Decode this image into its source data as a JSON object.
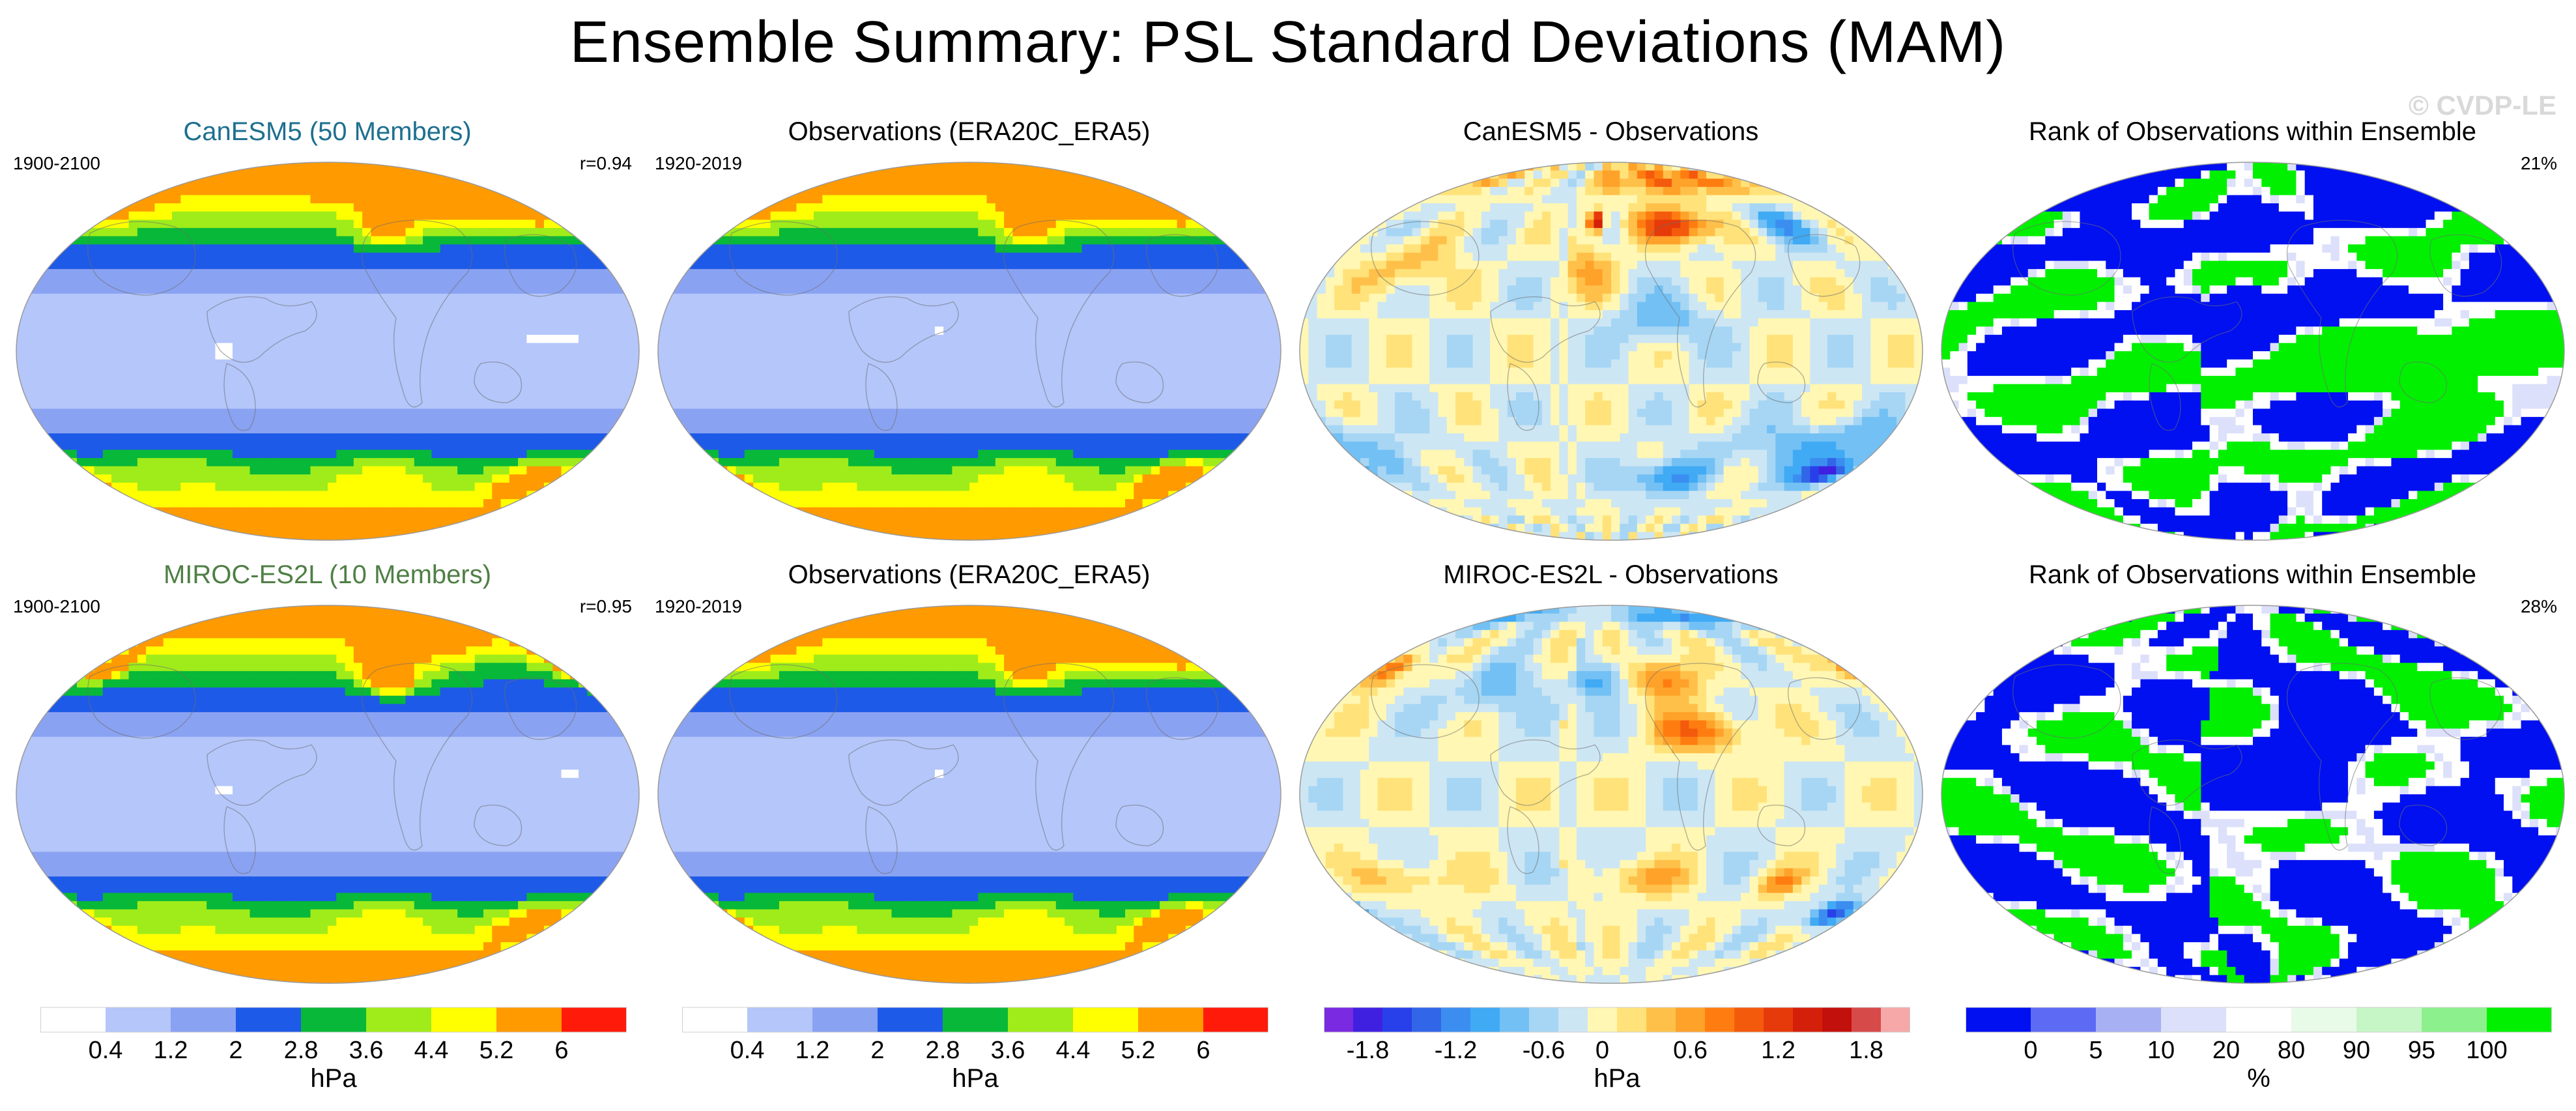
{
  "title": "Ensemble Summary: PSL Standard Deviations (MAM)",
  "watermark": "© CVDP-LE",
  "colors": {
    "sd": [
      "#ffffff",
      "#b4c6fa",
      "#7f96f0",
      "#1f5de8",
      "#0d46e0",
      "#08b838",
      "#26c926",
      "#9fec1a",
      "#ffff00",
      "#ff9a00",
      "#ff1a0a"
    ],
    "diff": [
      "#7a2ae0",
      "#4020e0",
      "#2840ea",
      "#3266e8",
      "#3b8ef0",
      "#40aaf4",
      "#73c0f4",
      "#a6d6f4",
      "#cde6f4",
      "#fff7b3",
      "#ffe27a",
      "#ffc04a",
      "#ffa22a",
      "#ff7d10",
      "#f45a0c",
      "#e63a0a",
      "#d41f0a",
      "#c2100c",
      "#d74a4a",
      "#f6a8a8"
    ],
    "rank": [
      "#0010f0",
      "#5c6af4",
      "#a8b0f4",
      "#dde0fa",
      "#ffffff",
      "#e8fbe8",
      "#c6f6c6",
      "#8cf08c",
      "#00f000"
    ]
  },
  "chart_data": [
    {
      "type": "heatmap",
      "title": "CanESM5 (50 Members)",
      "left_label": "1900-2100",
      "right_label": "r=0.94",
      "variable": "PSL standard deviation",
      "unit": "hPa",
      "colorbar": "sd"
    },
    {
      "type": "heatmap",
      "title": "Observations (ERA20C_ERA5)",
      "left_label": "1920-2019",
      "right_label": "",
      "variable": "PSL standard deviation",
      "unit": "hPa",
      "colorbar": "sd"
    },
    {
      "type": "heatmap",
      "title": "CanESM5 - Observations",
      "left_label": "",
      "right_label": "",
      "variable": "PSL standard deviation difference",
      "unit": "hPa",
      "colorbar": "diff"
    },
    {
      "type": "heatmap",
      "title": "Rank of Observations within Ensemble",
      "left_label": "",
      "right_label": "21%",
      "variable": "rank",
      "unit": "%",
      "colorbar": "rank"
    },
    {
      "type": "heatmap",
      "title": "MIROC-ES2L (10 Members)",
      "left_label": "1900-2100",
      "right_label": "r=0.95",
      "variable": "PSL standard deviation",
      "unit": "hPa",
      "colorbar": "sd"
    },
    {
      "type": "heatmap",
      "title": "Observations (ERA20C_ERA5)",
      "left_label": "1920-2019",
      "right_label": "",
      "variable": "PSL standard deviation",
      "unit": "hPa",
      "colorbar": "sd"
    },
    {
      "type": "heatmap",
      "title": "MIROC-ES2L - Observations",
      "left_label": "",
      "right_label": "",
      "variable": "PSL standard deviation difference",
      "unit": "hPa",
      "colorbar": "diff"
    },
    {
      "type": "heatmap",
      "title": "Rank of Observations within Ensemble",
      "left_label": "",
      "right_label": "28%",
      "variable": "rank",
      "unit": "%",
      "colorbar": "rank"
    }
  ],
  "colorbars": [
    {
      "name": "sd",
      "ticks": [
        "0.4",
        "1.2",
        "2",
        "2.8",
        "3.6",
        "4.4",
        "5.2",
        "6"
      ],
      "unit": "hPa"
    },
    {
      "name": "sd",
      "ticks": [
        "0.4",
        "1.2",
        "2",
        "2.8",
        "3.6",
        "4.4",
        "5.2",
        "6"
      ],
      "unit": "hPa"
    },
    {
      "name": "diff",
      "ticks": [
        "-1.8",
        "-1.2",
        "-0.6",
        "0",
        "0.6",
        "1.2",
        "1.8"
      ],
      "unit": "hPa"
    },
    {
      "name": "rank",
      "ticks": [
        "0",
        "5",
        "10",
        "20",
        "80",
        "90",
        "95",
        "100"
      ],
      "unit": "%"
    }
  ]
}
